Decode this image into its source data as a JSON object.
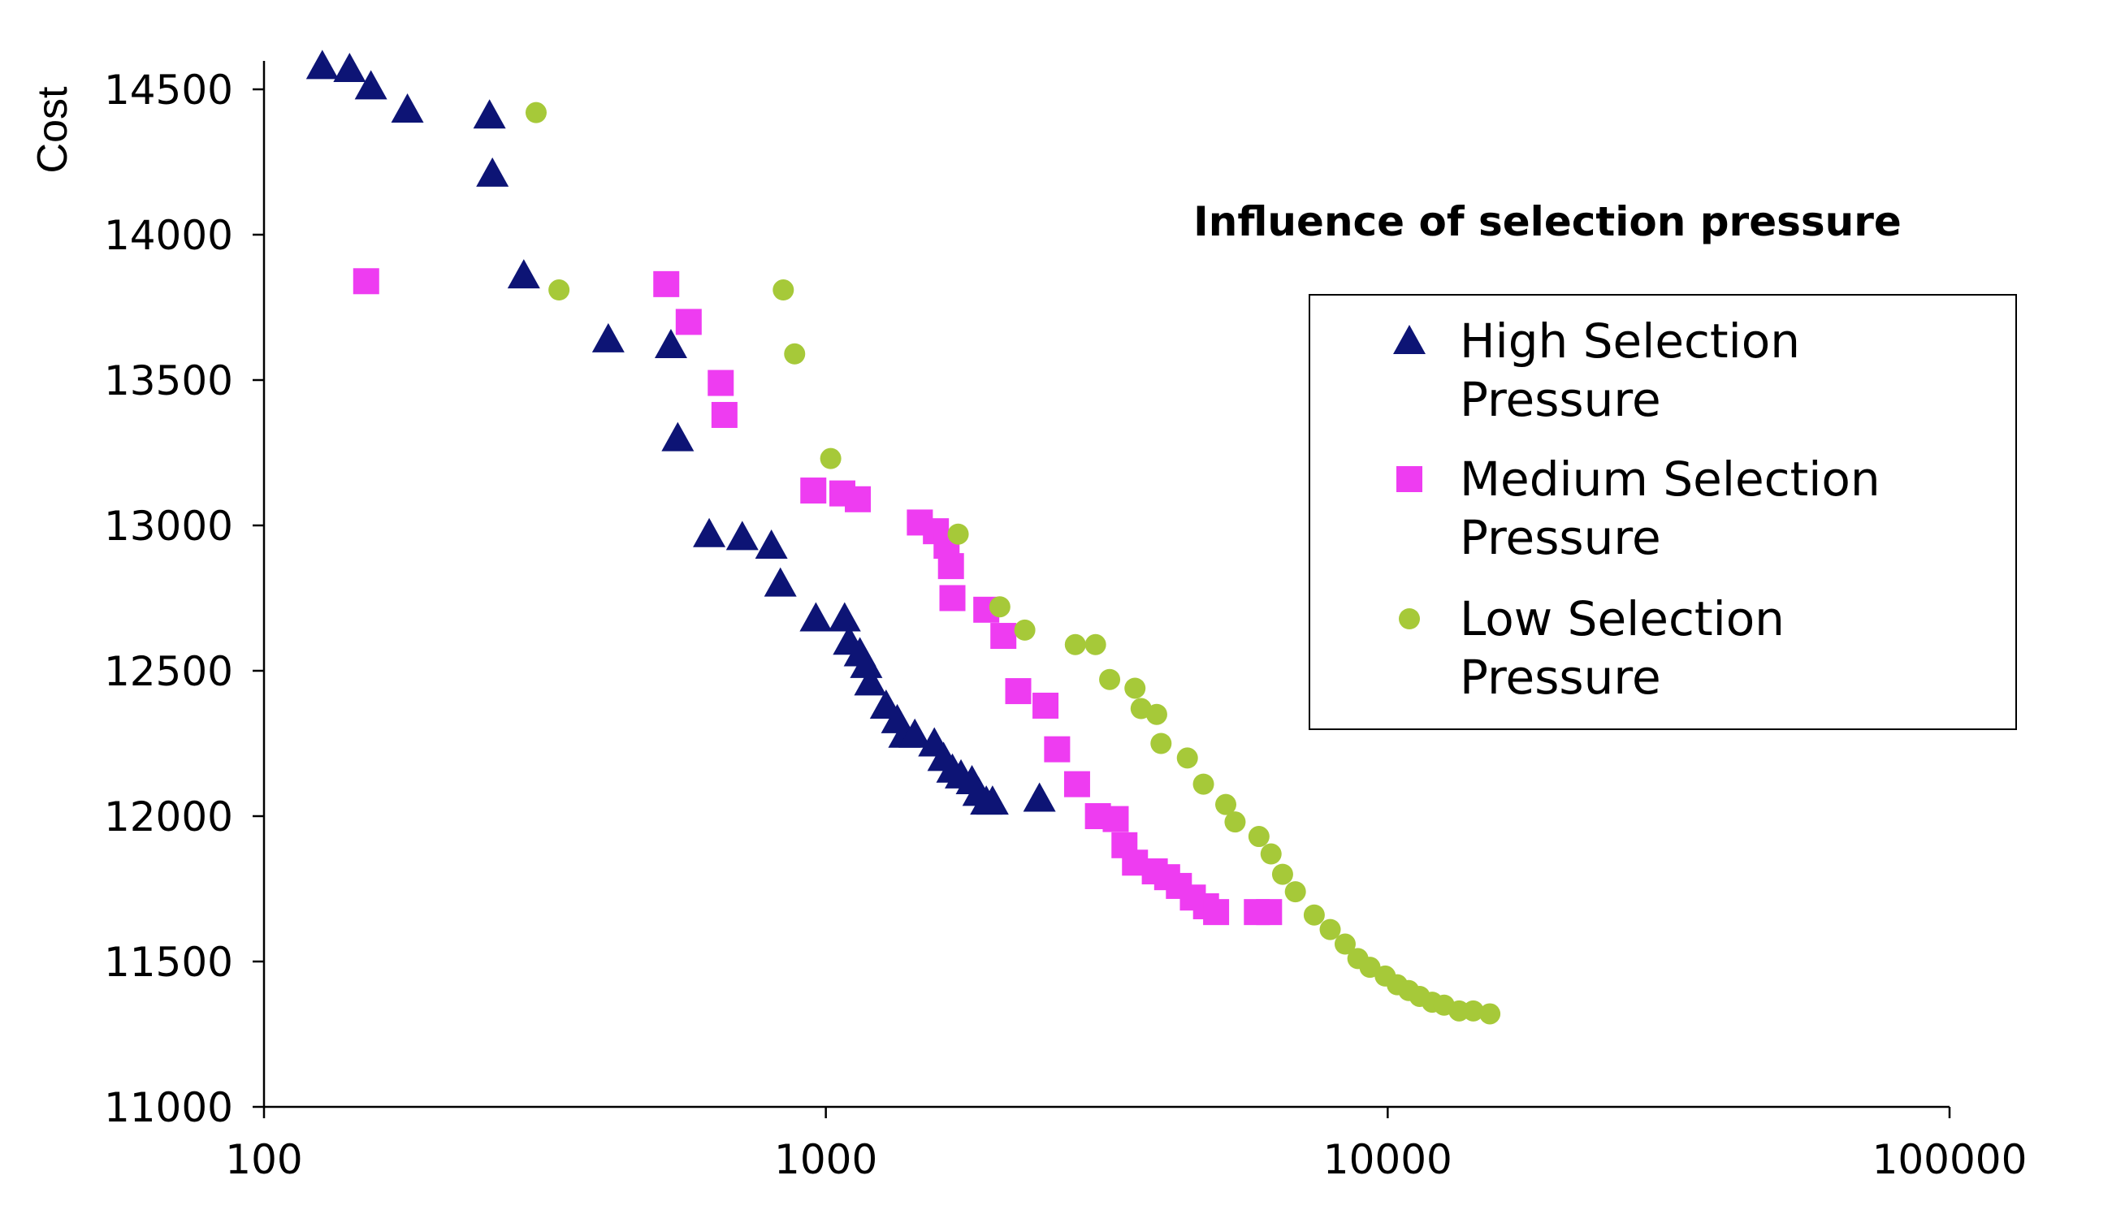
{
  "chart_data": {
    "type": "scatter",
    "title": "Influence of selection pressure",
    "xlabel": "",
    "ylabel": "Cost",
    "x_scale": "log",
    "xlim": [
      100,
      100000
    ],
    "ylim": [
      11000,
      14600
    ],
    "x_ticks": [
      100,
      1000,
      10000,
      100000
    ],
    "y_ticks": [
      11000,
      11500,
      12000,
      12500,
      13000,
      13500,
      14000,
      14500
    ],
    "grid": false,
    "legend_position": "right",
    "series": [
      {
        "name": "High Selection Pressure",
        "marker": "triangle",
        "color": "#0d1475",
        "points": [
          [
            127,
            14580
          ],
          [
            142,
            14570
          ],
          [
            155,
            14510
          ],
          [
            180,
            14430
          ],
          [
            252,
            14410
          ],
          [
            255,
            14210
          ],
          [
            290,
            13860
          ],
          [
            410,
            13640
          ],
          [
            530,
            13620
          ],
          [
            545,
            13300
          ],
          [
            620,
            12970
          ],
          [
            710,
            12960
          ],
          [
            800,
            12930
          ],
          [
            830,
            12800
          ],
          [
            960,
            12680
          ],
          [
            1080,
            12680
          ],
          [
            1100,
            12600
          ],
          [
            1150,
            12560
          ],
          [
            1180,
            12520
          ],
          [
            1200,
            12460
          ],
          [
            1280,
            12380
          ],
          [
            1340,
            12330
          ],
          [
            1380,
            12280
          ],
          [
            1440,
            12280
          ],
          [
            1560,
            12250
          ],
          [
            1620,
            12200
          ],
          [
            1680,
            12160
          ],
          [
            1740,
            12140
          ],
          [
            1820,
            12120
          ],
          [
            1870,
            12080
          ],
          [
            1930,
            12050
          ],
          [
            1980,
            12050
          ],
          [
            2400,
            12060
          ]
        ]
      },
      {
        "name": "Medium Selection Pressure",
        "marker": "square",
        "color": "#ee3cf1",
        "points": [
          [
            152,
            13840
          ],
          [
            520,
            13830
          ],
          [
            570,
            13700
          ],
          [
            650,
            13490
          ],
          [
            660,
            13380
          ],
          [
            950,
            13120
          ],
          [
            1070,
            13110
          ],
          [
            1140,
            13090
          ],
          [
            1470,
            13010
          ],
          [
            1570,
            12980
          ],
          [
            1640,
            12930
          ],
          [
            1670,
            12860
          ],
          [
            1680,
            12750
          ],
          [
            1930,
            12710
          ],
          [
            2070,
            12620
          ],
          [
            2200,
            12430
          ],
          [
            2460,
            12380
          ],
          [
            2580,
            12230
          ],
          [
            2800,
            12110
          ],
          [
            3050,
            12000
          ],
          [
            3280,
            11990
          ],
          [
            3400,
            11900
          ],
          [
            3550,
            11840
          ],
          [
            3850,
            11810
          ],
          [
            4050,
            11790
          ],
          [
            4250,
            11760
          ],
          [
            4500,
            11720
          ],
          [
            4750,
            11690
          ],
          [
            4950,
            11670
          ],
          [
            5850,
            11670
          ],
          [
            6150,
            11670
          ]
        ]
      },
      {
        "name": "Low Selection Pressure",
        "marker": "circle",
        "color": "#a6c939",
        "points": [
          [
            305,
            14420
          ],
          [
            335,
            13810
          ],
          [
            840,
            13810
          ],
          [
            880,
            13590
          ],
          [
            1020,
            13230
          ],
          [
            1720,
            12970
          ],
          [
            2040,
            12720
          ],
          [
            2260,
            12640
          ],
          [
            2780,
            12590
          ],
          [
            3020,
            12590
          ],
          [
            3200,
            12470
          ],
          [
            3550,
            12440
          ],
          [
            3640,
            12370
          ],
          [
            3880,
            12350
          ],
          [
            3950,
            12250
          ],
          [
            4400,
            12200
          ],
          [
            4700,
            12110
          ],
          [
            5150,
            12040
          ],
          [
            5350,
            11980
          ],
          [
            5900,
            11930
          ],
          [
            6200,
            11870
          ],
          [
            6500,
            11800
          ],
          [
            6850,
            11740
          ],
          [
            7400,
            11660
          ],
          [
            7900,
            11610
          ],
          [
            8400,
            11560
          ],
          [
            8850,
            11510
          ],
          [
            9300,
            11480
          ],
          [
            9900,
            11450
          ],
          [
            10400,
            11420
          ],
          [
            10900,
            11400
          ],
          [
            11400,
            11380
          ],
          [
            12000,
            11360
          ],
          [
            12600,
            11350
          ],
          [
            13400,
            11330
          ],
          [
            14200,
            11330
          ],
          [
            15200,
            11320
          ]
        ]
      }
    ]
  }
}
